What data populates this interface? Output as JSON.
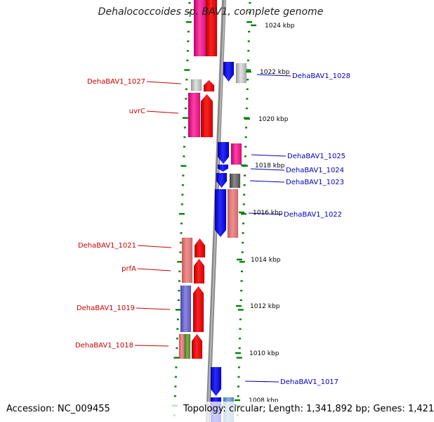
{
  "title": "Dehalococcoides sp. BAV1, complete genome",
  "footer": {
    "accession_label": "Accession:",
    "accession": "NC_009455",
    "topology_label": "Topology:",
    "topology": "circular",
    "length_label": "Length:",
    "length": "1,341,892 bp",
    "genes_label": "Genes:",
    "genes": "1,421"
  },
  "colors": {
    "left_labels": "#cc0000",
    "right_labels": "#0000bb",
    "ticks": "#008000",
    "backbone": "#888888"
  },
  "scale_labels": [
    "1024 kbp",
    "1022 kbp",
    "1020 kbp",
    "1018 kbp",
    "1016 kbp",
    "1014 kbp",
    "1012 kbp",
    "1010 kbp",
    "1008 kbp"
  ],
  "left_gene_labels": [
    "DehaBAV1_1027",
    "uvrC",
    "DehaBAV1_1021",
    "prfA",
    "DehaBAV1_1019",
    "DehaBAV1_1018"
  ],
  "right_gene_labels": [
    "DehaBAV1_1028",
    "DehaBAV1_1025",
    "DehaBAV1_1024",
    "DehaBAV1_1023",
    "DehaBAV1_1022",
    "DehaBAV1_1017"
  ]
}
